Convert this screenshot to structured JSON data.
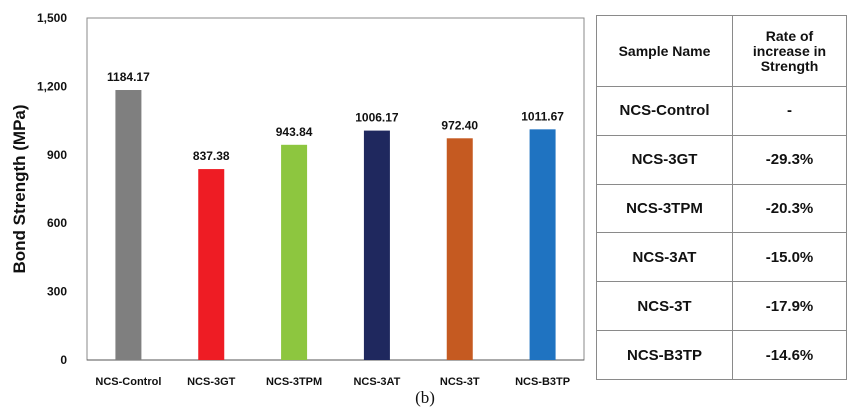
{
  "chart_data": {
    "type": "bar",
    "title": "",
    "xlabel": "",
    "ylabel": "Bond Strength (MPa)",
    "ylim": [
      0,
      1500
    ],
    "yticks": [
      "0",
      "300",
      "600",
      "900",
      "1,200",
      "1,500"
    ],
    "ytick_values": [
      0,
      300,
      600,
      900,
      1200,
      1500
    ],
    "grid": false,
    "legend": "none",
    "categories": [
      "NCS-Control",
      "NCS-3GT",
      "NCS-3TPM",
      "NCS-3AT",
      "NCS-3T",
      "NCS-B3TP"
    ],
    "values": [
      1184.17,
      837.38,
      943.84,
      1006.17,
      972.4,
      1011.67
    ],
    "value_labels": [
      "1184.17",
      "837.38",
      "943.84",
      "1006.17",
      "972.40",
      "1011.67"
    ],
    "colors": [
      "#7f7f7f",
      "#ee1c24",
      "#8dc63f",
      "#1f285e",
      "#c55a21",
      "#1f73c1"
    ]
  },
  "caption": "(b)",
  "table": {
    "headers": [
      "Sample Name",
      "Rate of increase in Strength"
    ],
    "rows": [
      [
        "NCS-Control",
        "-"
      ],
      [
        "NCS-3GT",
        "-29.3%"
      ],
      [
        "NCS-3TPM",
        "-20.3%"
      ],
      [
        "NCS-3AT",
        "-15.0%"
      ],
      [
        "NCS-3T",
        "-17.9%"
      ],
      [
        "NCS-B3TP",
        "-14.6%"
      ]
    ]
  }
}
